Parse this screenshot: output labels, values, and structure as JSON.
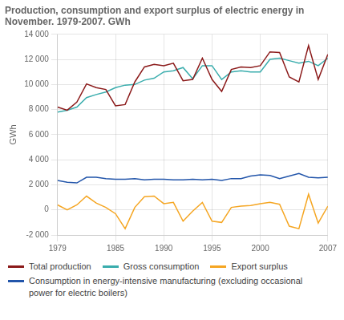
{
  "chart_data": {
    "type": "line",
    "title": "Production, consumption and export surplus of electric energy in\nNovember. 1979-2007. GWh",
    "y_label": "GWh",
    "x": [
      1979,
      1980,
      1981,
      1982,
      1983,
      1984,
      1985,
      1986,
      1987,
      1988,
      1989,
      1990,
      1991,
      1992,
      1993,
      1994,
      1995,
      1996,
      1997,
      1998,
      1999,
      2000,
      2001,
      2002,
      2003,
      2004,
      2005,
      2006,
      2007
    ],
    "series": [
      {
        "name": "Total production",
        "color": "#8B1A1A",
        "values": [
          8200,
          7950,
          8600,
          10050,
          9750,
          9600,
          8300,
          8400,
          10200,
          11400,
          11600,
          11500,
          11700,
          10300,
          10400,
          12100,
          10400,
          9450,
          11200,
          11400,
          11350,
          11500,
          12600,
          12550,
          10600,
          10200,
          13100,
          10400,
          12400
        ]
      },
      {
        "name": "Gross consumption",
        "color": "#3aadad",
        "values": [
          7800,
          7950,
          8200,
          8950,
          9200,
          9400,
          9750,
          9950,
          10000,
          10350,
          10500,
          11000,
          11100,
          11350,
          10450,
          11500,
          11500,
          10400,
          11000,
          11100,
          11000,
          11000,
          12000,
          12100,
          11900,
          11700,
          11850,
          11500,
          12100
        ]
      },
      {
        "name": "Export surplus",
        "color": "#f5a623",
        "values": [
          400,
          0,
          400,
          1100,
          550,
          200,
          -300,
          -1500,
          200,
          1050,
          1100,
          500,
          600,
          -900,
          -100,
          600,
          -900,
          -1000,
          200,
          300,
          350,
          500,
          600,
          450,
          -1300,
          -1500,
          1250,
          -1050,
          300
        ]
      },
      {
        "name": "Consumption in energy-intensive manufacturing (excluding occasional\npower for electric boilers)",
        "color": "#2255aa",
        "values": [
          2350,
          2200,
          2150,
          2600,
          2600,
          2500,
          2450,
          2450,
          2500,
          2400,
          2450,
          2450,
          2400,
          2400,
          2450,
          2400,
          2450,
          2350,
          2500,
          2500,
          2700,
          2800,
          2750,
          2500,
          2700,
          2900,
          2600,
          2550,
          2600
        ]
      }
    ],
    "xlim": [
      1979,
      2007
    ],
    "xticks": [
      1979,
      1985,
      1990,
      1995,
      2000,
      2007
    ],
    "ylim": [
      -2000,
      14000
    ],
    "yticks": [
      {
        "value": -2000,
        "label": "-2 000"
      },
      0,
      {
        "value": 2000,
        "label": "2 000"
      },
      {
        "value": 4000,
        "label": "4 000"
      },
      {
        "value": 6000,
        "label": "6 000"
      },
      {
        "value": 8000,
        "label": "8 000"
      },
      {
        "value": 10000,
        "label": "10 000"
      },
      {
        "value": 12000,
        "label": "12 000"
      },
      {
        "value": 14000,
        "label": "14 000"
      }
    ],
    "grid": true,
    "legend": "bottom"
  }
}
